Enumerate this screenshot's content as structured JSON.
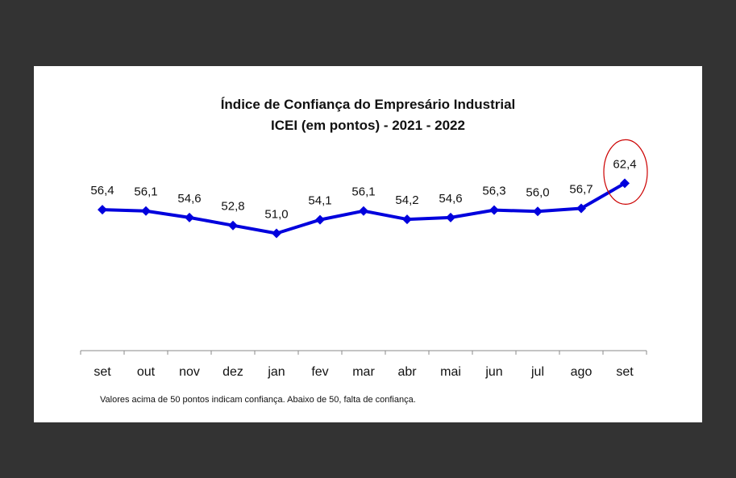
{
  "chart_data": {
    "type": "line",
    "title": "Índice de Confiança do Empresário Industrial",
    "subtitle": "ICEI (em pontos) - 2021 - 2022",
    "categories": [
      "set",
      "out",
      "nov",
      "dez",
      "jan",
      "fev",
      "mar",
      "abr",
      "mai",
      "jun",
      "jul",
      "ago",
      "set"
    ],
    "series": [
      {
        "values": [
          56.4,
          56.1,
          54.6,
          52.8,
          51.0,
          54.1,
          56.1,
          54.2,
          54.6,
          56.3,
          56.0,
          56.7,
          62.4
        ],
        "labels": [
          "56,4",
          "56,1",
          "54,6",
          "52,8",
          "51,0",
          "54,1",
          "56,1",
          "54,2",
          "54,6",
          "56,3",
          "56,0",
          "56,7",
          "62,4"
        ],
        "color": "#0000dd",
        "marker": "diamond"
      }
    ],
    "highlight": {
      "index": 12,
      "color": "#cc0000",
      "shape": "ellipse"
    },
    "grid": false,
    "legend": "none",
    "yaxis_visible": false
  },
  "footnote": "Valores acima de 50 pontos indicam confiança. Abaixo de 50, falta de confiança."
}
